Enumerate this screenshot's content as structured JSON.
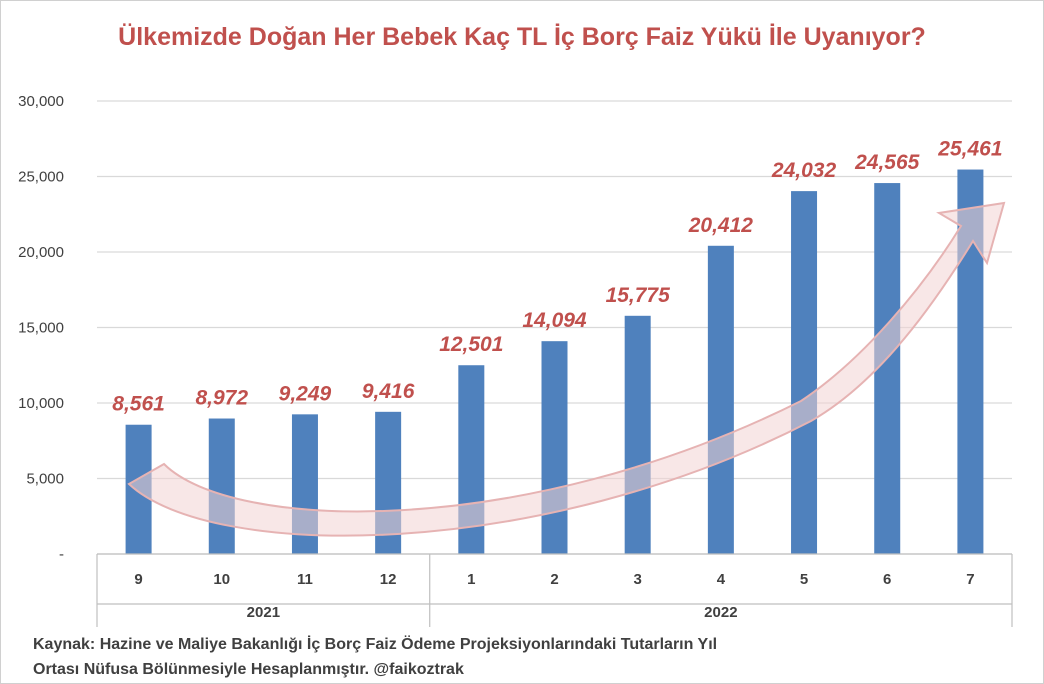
{
  "chart_data": {
    "type": "bar",
    "title": "Ülkemizde Doğan Her Bebek Kaç TL İç Borç Faiz Yükü İle Uyanıyor?",
    "categories": [
      "9",
      "10",
      "11",
      "12",
      "1",
      "2",
      "3",
      "4",
      "5",
      "6",
      "7"
    ],
    "groups": [
      {
        "label": "2021",
        "count": 4
      },
      {
        "label": "2022",
        "count": 7
      }
    ],
    "series": [
      {
        "values": [
          8561,
          8972,
          9249,
          9416,
          12501,
          14094,
          15775,
          20412,
          24032,
          24565,
          25461
        ]
      }
    ],
    "data_labels": [
      "8,561",
      "8,972",
      "9,249",
      "9,416",
      "12,501",
      "14,094",
      "15,775",
      "20,412",
      "24,032",
      "24,565",
      "25,461"
    ],
    "ylim": [
      0,
      30000
    ],
    "yticks": [
      0,
      5000,
      10000,
      15000,
      20000,
      25000,
      30000
    ],
    "ytick_labels": [
      "-",
      "5,000",
      "10,000",
      "15,000",
      "20,000",
      "25,000",
      "30,000"
    ],
    "grid": true,
    "legend": "none",
    "annotation": "curved-arrow-upward-trend",
    "colors": {
      "bar": "#4f81bd",
      "title": "#c0504d",
      "data_label": "#c0504d",
      "grid": "#d9d9d9",
      "arrow_fill": "#f2d4d4",
      "arrow_stroke": "#e6b3b3"
    }
  },
  "source_note": {
    "line1": "Kaynak: Hazine ve Maliye Bakanlığı İç Borç Faiz Ödeme Projeksiyonlarındaki  Tutarların Yıl",
    "line2": "Ortası Nüfusa Bölünmesiyle Hesaplanmıştır.  @faikoztrak"
  }
}
